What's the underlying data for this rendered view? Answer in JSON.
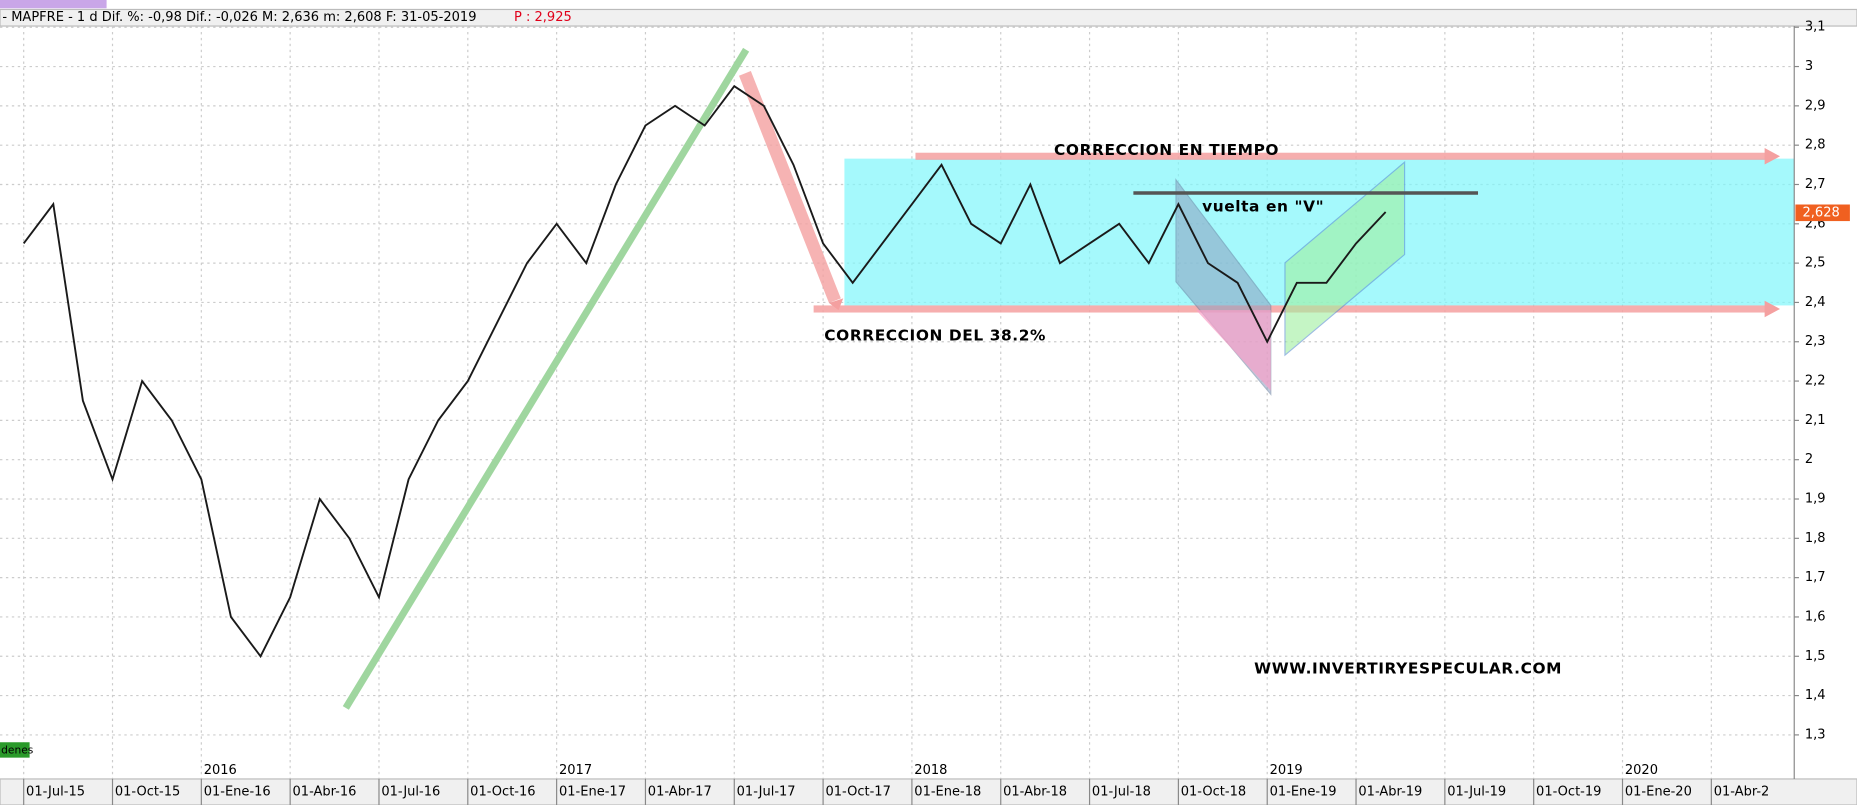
{
  "chart_data": {
    "type": "line",
    "header_text": "- MAPFRE -  1 d Dif. %: -0,98 Dif.: -0,026 M: 2,636 m: 2,608 F: 31-05-2019",
    "header_price": "P : 2,925",
    "annotations": [
      "CORRECCION EN TIEMPO",
      "vuelta en \"V\"",
      "CORRECCION DEL 38.2%",
      "WWW.INVERTIRYESPECULAR.COM"
    ],
    "corner_tag": "denes",
    "categories": [
      "01-Jul-15",
      null,
      null,
      "01-Oct-15",
      null,
      null,
      "01-Ene-16",
      null,
      null,
      "01-Abr-16",
      null,
      null,
      "01-Jul-16",
      null,
      null,
      "01-Oct-16",
      null,
      null,
      "01-Ene-17",
      null,
      null,
      "01-Abr-17",
      null,
      null,
      "01-Jul-17",
      null,
      null,
      "01-Oct-17",
      null,
      null,
      "01-Ene-18",
      null,
      null,
      "01-Abr-18",
      null,
      null,
      "01-Jul-18",
      null,
      null,
      "01-Oct-18",
      null,
      null,
      "01-Ene-19",
      null,
      null,
      "01-Abr-19",
      null,
      null,
      "01-Jul-19",
      null,
      null,
      "01-Oct-19",
      null,
      null,
      "01-Ene-20",
      null,
      null,
      "01-Abr-2"
    ],
    "year_labels": [
      "2016",
      "2017",
      "2018",
      "2019",
      "2020"
    ],
    "series": [
      {
        "name": "MAPFRE",
        "color": "#1a1a1a",
        "values": [
          2.55,
          2.65,
          2.15,
          1.95,
          2.2,
          2.1,
          1.95,
          1.6,
          1.5,
          1.65,
          1.9,
          1.8,
          1.65,
          1.95,
          2.1,
          2.2,
          2.35,
          2.5,
          2.6,
          2.5,
          2.7,
          2.85,
          2.9,
          2.85,
          2.95,
          2.9,
          2.75,
          2.55,
          2.45,
          2.55,
          2.65,
          2.75,
          2.6,
          2.55,
          2.7,
          2.5,
          2.55,
          2.6,
          2.5,
          2.65,
          2.5,
          2.45,
          2.3,
          2.45,
          2.45,
          2.55,
          2.63,
          null,
          null,
          null,
          null,
          null,
          null,
          null,
          null,
          null,
          null,
          null
        ]
      }
    ],
    "last_price": {
      "value": 2.628,
      "label": "2,628"
    },
    "ylim": [
      1.2,
      3.1
    ],
    "yticks": [
      {
        "value": 1.3,
        "label": "1,3"
      },
      {
        "value": 1.4,
        "label": "1,4"
      },
      {
        "value": 1.5,
        "label": "1,5"
      },
      {
        "value": 1.6,
        "label": "1,6"
      },
      {
        "value": 1.7,
        "label": "1,7"
      },
      {
        "value": 1.8,
        "label": "1,8"
      },
      {
        "value": 1.9,
        "label": "1,9"
      },
      2,
      {
        "value": 2.1,
        "label": "2,1"
      },
      {
        "value": 2.2,
        "label": "2,2"
      },
      {
        "value": 2.3,
        "label": "2,3"
      },
      {
        "value": 2.4,
        "label": "2,4"
      },
      {
        "value": 2.5,
        "label": "2,5"
      },
      {
        "value": 2.6,
        "label": "2,6"
      },
      {
        "value": 2.7,
        "label": "2,7"
      },
      {
        "value": 2.8,
        "label": "2,8"
      },
      {
        "value": 2.9,
        "label": "2,9"
      },
      3,
      {
        "value": 3.1,
        "label": "3,1"
      }
    ],
    "grid": true
  }
}
